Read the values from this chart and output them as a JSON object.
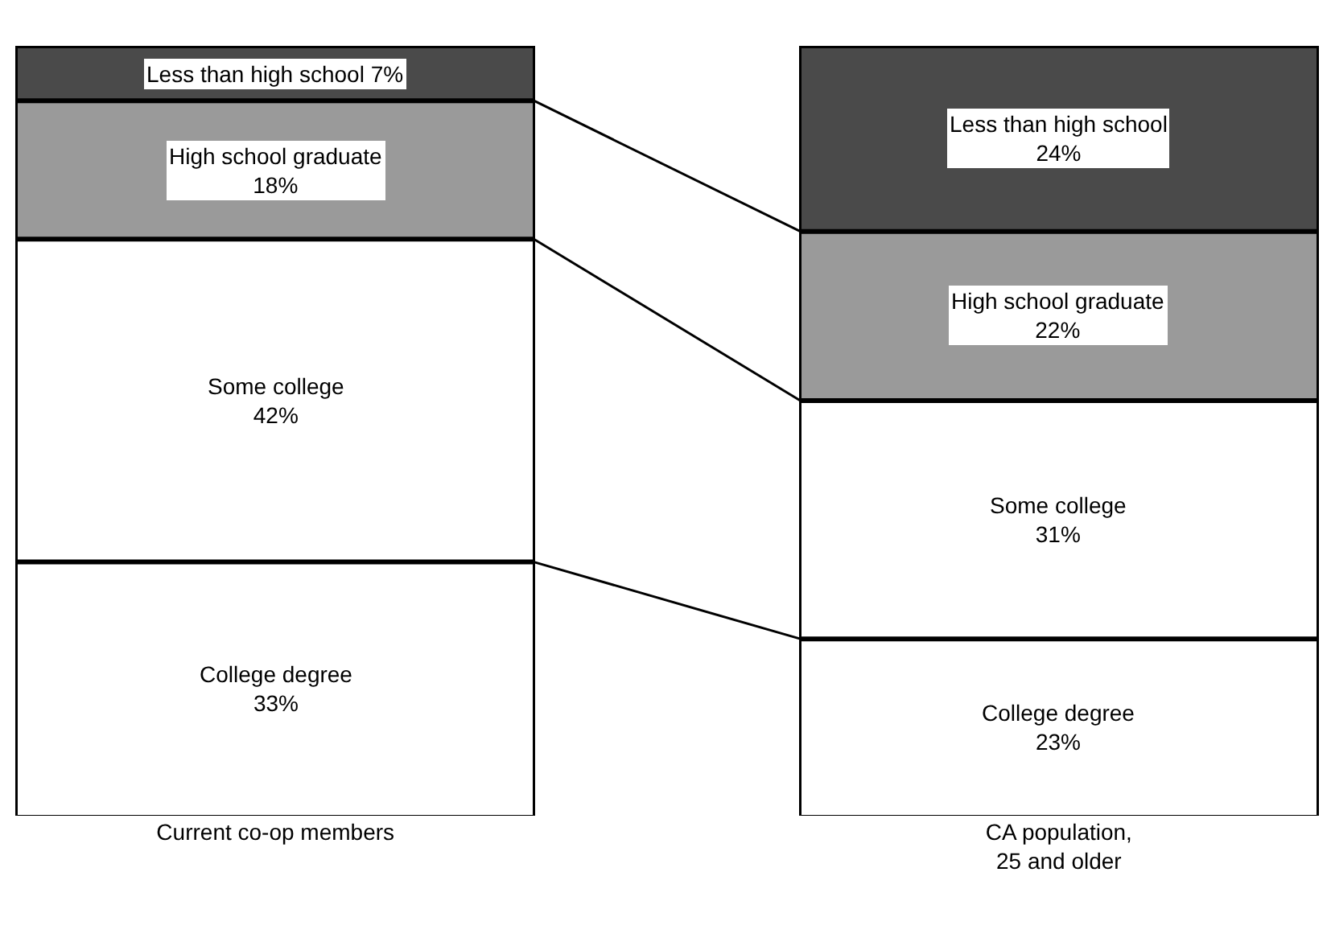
{
  "chart_data": {
    "type": "bar",
    "stacked": true,
    "categories": [
      "Current co-op members",
      "CA population,\n25 and older"
    ],
    "series": [
      {
        "name": "College degree",
        "color": "#ffffff",
        "values": [
          33,
          23
        ],
        "value_labels": [
          "33%",
          "23%"
        ]
      },
      {
        "name": "Some college",
        "color": "#ffffff",
        "values": [
          42,
          31
        ],
        "value_labels": [
          "42%",
          "31%"
        ]
      },
      {
        "name": "High school graduate",
        "color": "#9a9a9a",
        "values": [
          18,
          22
        ],
        "value_labels": [
          "18%",
          "22%"
        ]
      },
      {
        "name": "Less than high school",
        "color": "#4a4a4a",
        "values": [
          7,
          24
        ],
        "value_labels": [
          "7%",
          "24%"
        ]
      }
    ],
    "legend": false
  }
}
